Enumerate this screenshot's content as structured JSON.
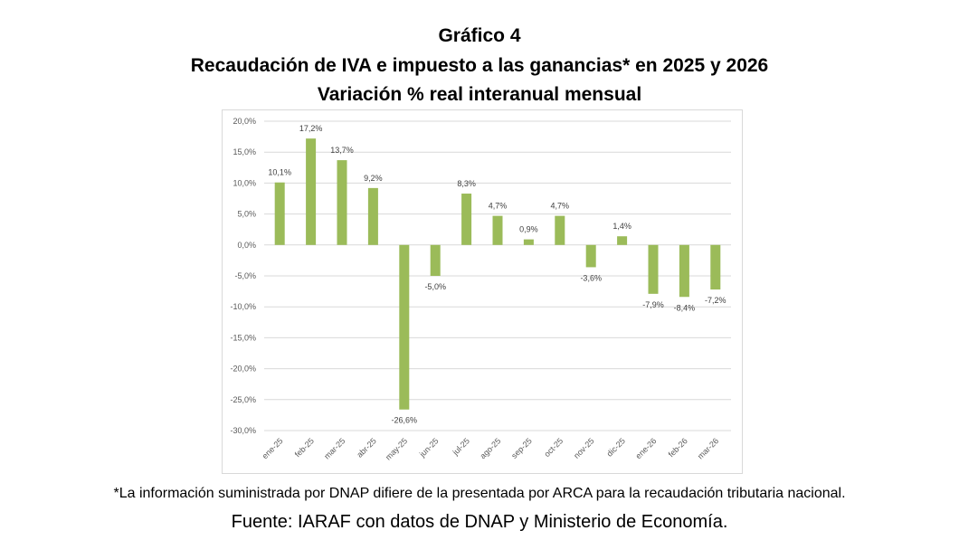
{
  "header": {
    "figure_number": "Gráfico 4",
    "title": "Recaudación  de IVA e impuesto a las ganancias*  en 2025  y 2026",
    "subtitle": "Variación  % real interanual  mensual"
  },
  "footer": {
    "footnote": "*La información suministrada por DNAP difiere de la presentada por ARCA para la recaudación tributaria nacional.",
    "source": "Fuente: IARAF con datos de DNAP y Ministerio de Economía."
  },
  "colors": {
    "bar": "#9bbb59",
    "gridline": "#d9d9d9",
    "frame": "#d9d9d9"
  },
  "chart_data": {
    "type": "bar",
    "title": "Recaudación de IVA e impuesto a las ganancias* en 2025 y 2026 — Variación % real interanual mensual",
    "xlabel": "",
    "ylabel": "",
    "categories": [
      "ene-25",
      "feb-25",
      "mar-25",
      "abr-25",
      "may-25",
      "jun-25",
      "jul-25",
      "ago-25",
      "sep-25",
      "oct-25",
      "nov-25",
      "dic-25",
      "ene-26",
      "feb-26",
      "mar-26"
    ],
    "values": [
      10.1,
      17.2,
      13.7,
      9.2,
      -26.6,
      -5.0,
      8.3,
      4.7,
      0.9,
      4.7,
      -3.6,
      1.4,
      -7.9,
      -8.4,
      -7.2
    ],
    "data_labels": [
      "10,1%",
      "17,2%",
      "13,7%",
      "9,2%",
      "-26,6%",
      "-5,0%",
      "8,3%",
      "4,7%",
      "0,9%",
      "4,7%",
      "-3,6%",
      "1,4%",
      "-7,9%",
      "-8,4%",
      "-7,2%"
    ],
    "ylim": [
      -30,
      20
    ],
    "yticks": [
      20,
      15,
      10,
      5,
      0,
      -5,
      -10,
      -15,
      -20,
      -25,
      -30
    ],
    "ytick_labels": [
      "20,0%",
      "15,0%",
      "10,0%",
      "5,0%",
      "0,0%",
      "-5,0%",
      "-10,0%",
      "-15,0%",
      "-20,0%",
      "-25,0%",
      "-30,0%"
    ],
    "grid": true,
    "legend": "none"
  }
}
